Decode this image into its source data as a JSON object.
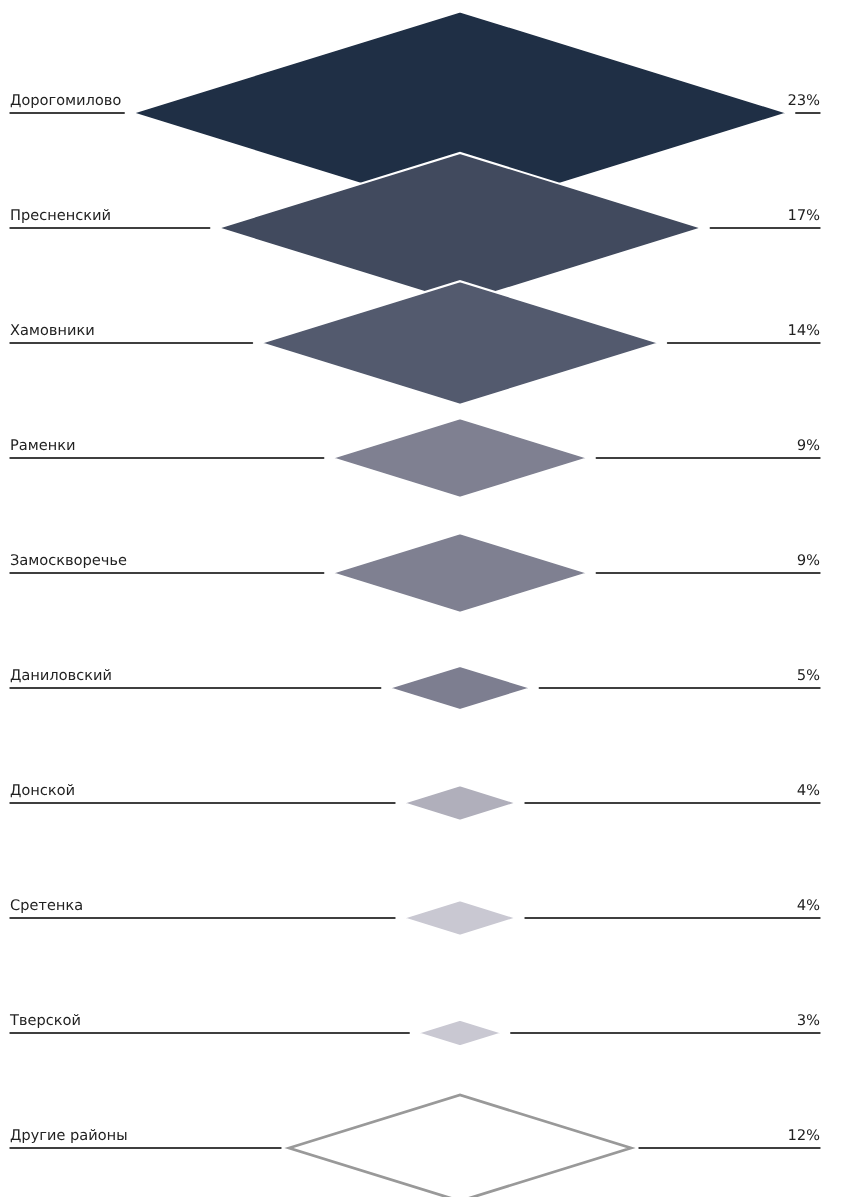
{
  "chart_data": {
    "type": "other",
    "categories": [
      "Дорогомилово",
      "Пресненский",
      "Хамовники",
      "Раменки",
      "Замоскворечье",
      "Даниловский",
      "Донской",
      "Сретенка",
      "Тверской",
      "Другие районы"
    ],
    "values": [
      23,
      17,
      14,
      9,
      9,
      5,
      4,
      4,
      3,
      12
    ],
    "value_labels": [
      "23%",
      "17%",
      "14%",
      "9%",
      "9%",
      "5%",
      "4%",
      "4%",
      "3%",
      "12%"
    ],
    "colors": [
      "#1f2f45",
      "#414a5e",
      "#535a6e",
      "#7f8091",
      "#7f8091",
      "#7d7e90",
      "#b0afbb",
      "#c9c8d2",
      "#c9c8d2",
      "#ffffff"
    ]
  }
}
